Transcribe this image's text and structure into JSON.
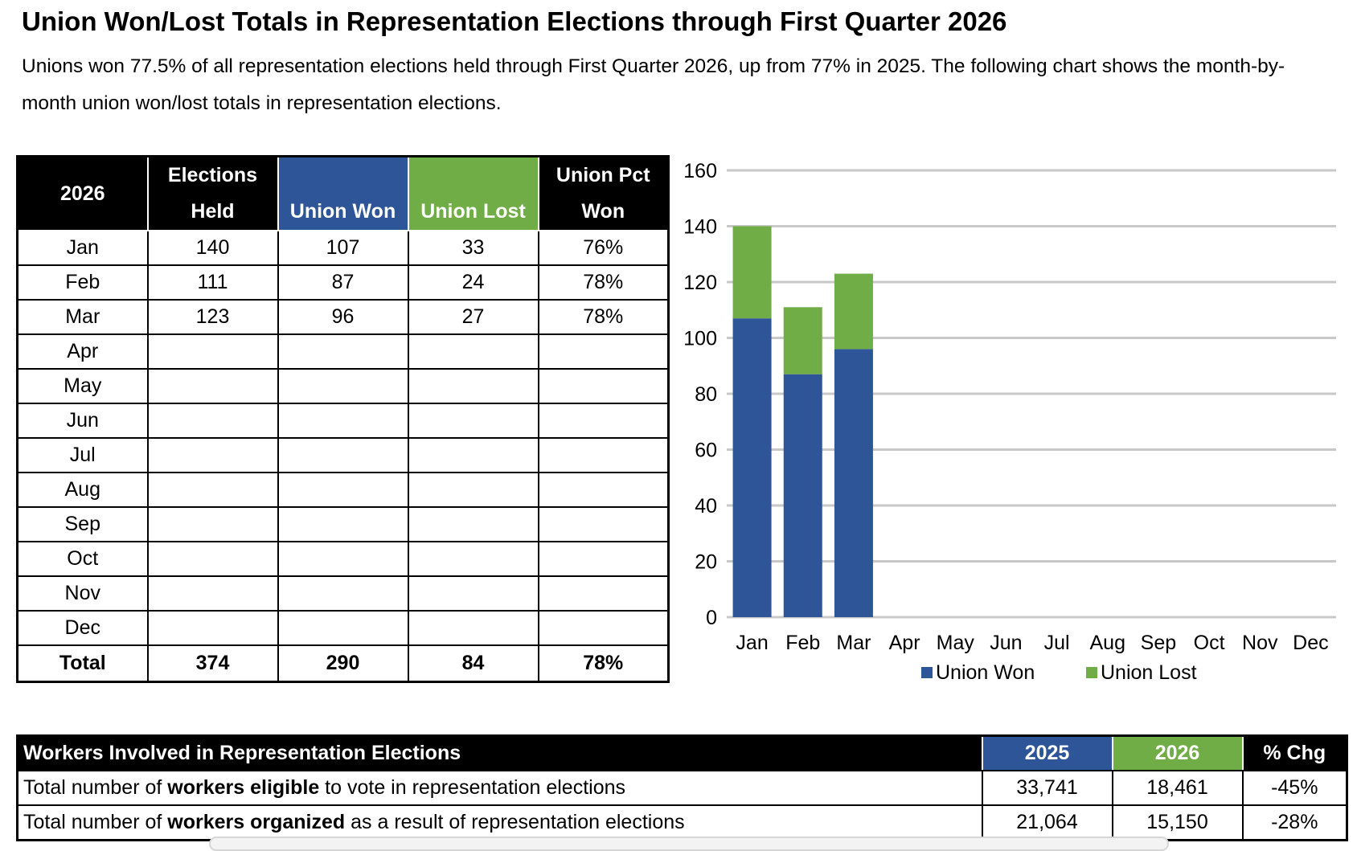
{
  "title": "Union Won/Lost Totals in Representation Elections through First Quarter 2026",
  "intro": "Unions won 77.5% of all representation elections held through First Quarter 2026, up from 77% in 2025. The following chart shows the month-by-month union won/lost totals in representation elections.",
  "monthly_table": {
    "headers": {
      "year": "2026",
      "held_line1": "Elections",
      "held_line2": "Held",
      "won": "Union Won",
      "lost": "Union Lost",
      "pct_line1": "Union Pct",
      "pct_line2": "Won"
    },
    "rows": [
      {
        "month": "Jan",
        "held": "140",
        "won": "107",
        "lost": "33",
        "pct": "76%"
      },
      {
        "month": "Feb",
        "held": "111",
        "won": "87",
        "lost": "24",
        "pct": "78%"
      },
      {
        "month": "Mar",
        "held": "123",
        "won": "96",
        "lost": "27",
        "pct": "78%"
      },
      {
        "month": "Apr",
        "held": "",
        "won": "",
        "lost": "",
        "pct": ""
      },
      {
        "month": "May",
        "held": "",
        "won": "",
        "lost": "",
        "pct": ""
      },
      {
        "month": "Jun",
        "held": "",
        "won": "",
        "lost": "",
        "pct": ""
      },
      {
        "month": "Jul",
        "held": "",
        "won": "",
        "lost": "",
        "pct": ""
      },
      {
        "month": "Aug",
        "held": "",
        "won": "",
        "lost": "",
        "pct": ""
      },
      {
        "month": "Sep",
        "held": "",
        "won": "",
        "lost": "",
        "pct": ""
      },
      {
        "month": "Oct",
        "held": "",
        "won": "",
        "lost": "",
        "pct": ""
      },
      {
        "month": "Nov",
        "held": "",
        "won": "",
        "lost": "",
        "pct": ""
      },
      {
        "month": "Dec",
        "held": "",
        "won": "",
        "lost": "",
        "pct": ""
      }
    ],
    "total": {
      "label": "Total",
      "held": "374",
      "won": "290",
      "lost": "84",
      "pct": "78%"
    }
  },
  "chart_data": {
    "type": "bar",
    "stacked": true,
    "categories": [
      "Jan",
      "Feb",
      "Mar",
      "Apr",
      "May",
      "Jun",
      "Jul",
      "Aug",
      "Sep",
      "Oct",
      "Nov",
      "Dec"
    ],
    "series": [
      {
        "name": "Union Won",
        "values": [
          107,
          87,
          96,
          null,
          null,
          null,
          null,
          null,
          null,
          null,
          null,
          null
        ],
        "color": "#2e5597"
      },
      {
        "name": "Union Lost",
        "values": [
          33,
          24,
          27,
          null,
          null,
          null,
          null,
          null,
          null,
          null,
          null,
          null
        ],
        "color": "#70ad47"
      }
    ],
    "ylim": [
      0,
      160
    ],
    "yticks": [
      0,
      20,
      40,
      60,
      80,
      100,
      120,
      140,
      160
    ],
    "grid": true,
    "legend": "bottom",
    "xlabel": "",
    "ylabel": ""
  },
  "workers_table": {
    "headers": {
      "desc": "Workers Involved in Representation Elections",
      "y2025": "2025",
      "y2026": "2026",
      "chg": "% Chg"
    },
    "rows": [
      {
        "pre": "Total number of ",
        "bold": "workers eligible",
        "post": " to vote in representation elections",
        "y2025": "33,741",
        "y2026": "18,461",
        "chg": "-45%"
      },
      {
        "pre": "Total number of ",
        "bold": "workers organized",
        "post": " as a result of representation elections",
        "y2025": "21,064",
        "y2026": "15,150",
        "chg": "-28%"
      }
    ]
  },
  "colors": {
    "won": "#2e5597",
    "lost": "#70ad47",
    "grid": "#c8c8c8",
    "header": "#000000"
  }
}
